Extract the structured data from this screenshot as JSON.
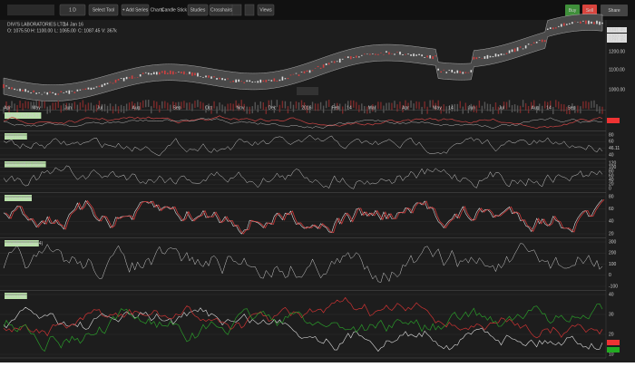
{
  "toolbar": {
    "interval": "1 D",
    "tool": "Select Tool",
    "add_series": "+ Add Series",
    "charts": "Charts",
    "chart_type": "Candle Stick",
    "studies": "Studies",
    "crosshairs": "Crosshairs",
    "views": "Views",
    "buy": "Buy",
    "sell": "Sell",
    "share": "Share"
  },
  "header": {
    "name": "DIVI'S LABORATORIES LTD.",
    "date": "14 Jan 16",
    "ohlcv": [
      "O: 1075.50",
      "H: 1100.00",
      "L: 1065.00",
      "C: 1087.45",
      "V: 367k"
    ]
  },
  "price_axis": [
    "1341.45",
    "1300.00",
    "1291.45",
    "1200.00",
    "1100.00",
    "1000.00"
  ],
  "x_labels": [
    "Apr",
    "May",
    "Jun",
    "Jul",
    "Aug",
    "Sep",
    "Oct",
    "Nov",
    "Dec",
    "2016",
    "Feb",
    "14",
    "Mar",
    "Apr",
    "May",
    "14",
    "Jun",
    "Jul",
    "Aug",
    "14",
    "Sep"
  ],
  "panels": [
    {
      "label": "MACD (12,26,9)",
      "axis": []
    },
    {
      "label": "RSI (14)",
      "axis": [
        "80",
        "60",
        "46.11",
        "40"
      ]
    },
    {
      "label": "BOLL %B (1,20,2)",
      "axis": [
        "120",
        "100",
        "80",
        "60",
        "40",
        "20",
        "0"
      ]
    },
    {
      "label": "STOCH (14)",
      "axis": [
        "80",
        "60",
        "40",
        "20"
      ]
    },
    {
      "label": "MOMENTUM (14)",
      "axis": [
        "300",
        "200",
        "100",
        "0",
        "-100"
      ]
    },
    {
      "label": "ADX (14)",
      "axis": [
        "40",
        "30",
        "20",
        "10"
      ]
    }
  ]
}
